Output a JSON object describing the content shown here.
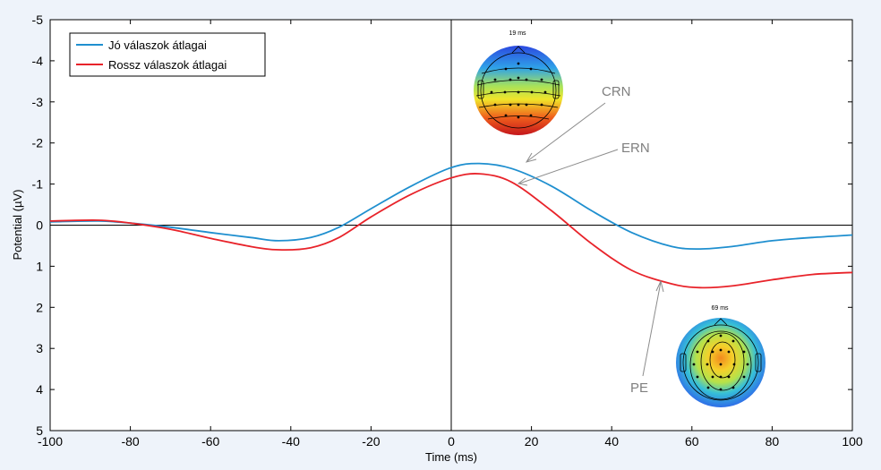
{
  "chart_data": {
    "type": "line",
    "title": "",
    "xlabel": "Time (ms)",
    "ylabel": "Potential (µV)",
    "xlim": [
      -100,
      100
    ],
    "ylim": [
      -5,
      5
    ],
    "y_reversed": true,
    "xticks": [
      -100,
      -80,
      -60,
      -40,
      -20,
      0,
      20,
      40,
      60,
      80,
      100
    ],
    "yticks": [
      -5,
      -4,
      -3,
      -2,
      -1,
      0,
      1,
      2,
      3,
      4,
      5
    ],
    "grid": false,
    "legend_position": "top-left",
    "reference_lines": {
      "x": 0,
      "y": 0
    },
    "series": [
      {
        "name": "Jó válaszok átlagai",
        "color": "#1f8fcf",
        "x": [
          -100,
          -88,
          -80,
          -70,
          -60,
          -50,
          -43,
          -35,
          -28,
          -20,
          -10,
          0,
          7,
          15,
          25,
          35,
          45,
          55,
          62,
          70,
          80,
          90,
          100
        ],
        "y": [
          -0.08,
          -0.1,
          -0.05,
          0.05,
          0.18,
          0.3,
          0.38,
          0.3,
          0.05,
          -0.4,
          -0.95,
          -1.4,
          -1.5,
          -1.38,
          -0.95,
          -0.35,
          0.18,
          0.52,
          0.58,
          0.52,
          0.38,
          0.3,
          0.24
        ]
      },
      {
        "name": "Rossz válaszok átlagai",
        "color": "#e8232a",
        "x": [
          -100,
          -88,
          -80,
          -70,
          -60,
          -50,
          -43,
          -35,
          -28,
          -20,
          -10,
          0,
          7,
          15,
          25,
          35,
          45,
          55,
          62,
          70,
          80,
          90,
          100
        ],
        "y": [
          -0.1,
          -0.12,
          -0.05,
          0.1,
          0.32,
          0.52,
          0.6,
          0.55,
          0.3,
          -0.2,
          -0.75,
          -1.15,
          -1.25,
          -1.05,
          -0.35,
          0.45,
          1.1,
          1.43,
          1.52,
          1.48,
          1.33,
          1.2,
          1.15
        ]
      }
    ],
    "annotations": [
      {
        "text": "CRN",
        "points_to": {
          "x": 19,
          "y": -1.5
        }
      },
      {
        "text": "ERN",
        "points_to": {
          "x": 17,
          "y": -1.0
        }
      },
      {
        "text": "PE",
        "points_to": {
          "x": 53,
          "y": 1.4
        }
      }
    ]
  },
  "topomaps": [
    {
      "caption": "19 ms",
      "pattern": "blue-top-red-bottom"
    },
    {
      "caption": "69 ms",
      "pattern": "red-center-blue-edges"
    }
  ],
  "colors": {
    "background": "#eef3fa",
    "plot_area": "#ffffff",
    "annotation": "#7f7f7f"
  }
}
